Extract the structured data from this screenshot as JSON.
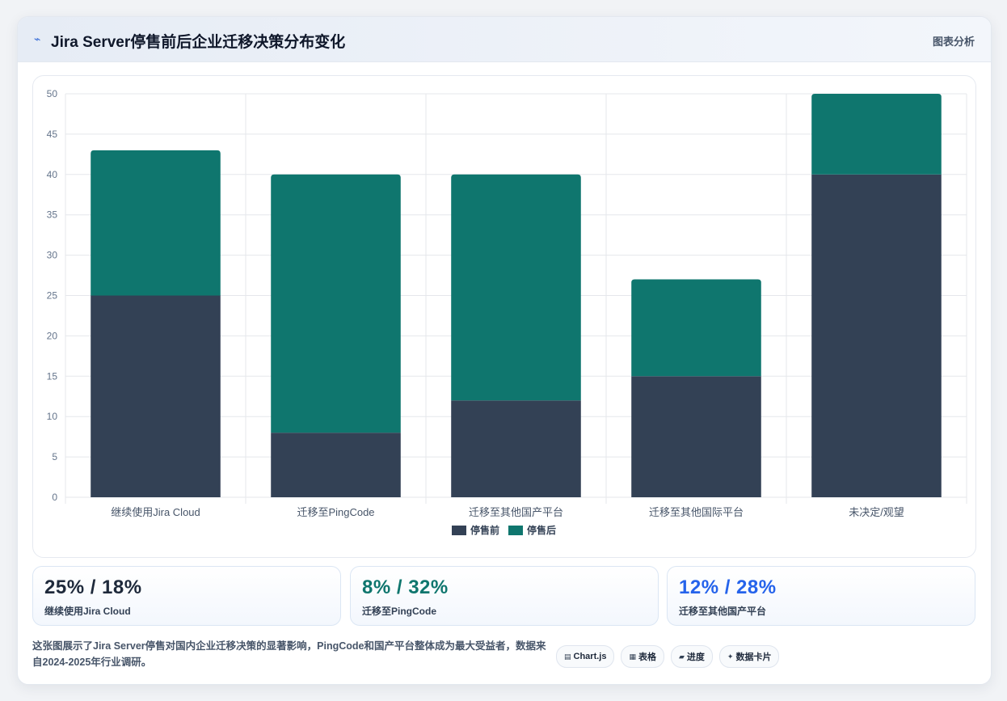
{
  "header": {
    "title": "Jira Server停售前后企业迁移决策分布变化",
    "right_label": "图表分析",
    "icon": "chart-line-icon"
  },
  "colors": {
    "before": "#334155",
    "after": "#0f766e",
    "stat1": "#1e293b",
    "stat2": "#0f766e",
    "stat3": "#2563eb"
  },
  "chart_data": {
    "type": "bar",
    "stacked": true,
    "categories": [
      "继续使用Jira Cloud",
      "迁移至PingCode",
      "迁移至其他国产平台",
      "迁移至其他国际平台",
      "未决定/观望"
    ],
    "series": [
      {
        "name": "停售前",
        "values": [
          25,
          8,
          12,
          15,
          40
        ]
      },
      {
        "name": "停售后",
        "values": [
          18,
          32,
          28,
          12,
          10
        ]
      }
    ],
    "ylim": [
      0,
      50
    ],
    "yticks": [
      0,
      5,
      10,
      15,
      20,
      25,
      30,
      35,
      40,
      45,
      50
    ],
    "grid": true,
    "legend_position": "bottom"
  },
  "stats": [
    {
      "value": "25% / 18%",
      "label": "继续使用Jira Cloud"
    },
    {
      "value": "8% / 32%",
      "label": "迁移至PingCode"
    },
    {
      "value": "12% / 28%",
      "label": "迁移至其他国产平台"
    }
  ],
  "footer": {
    "text": "这张图展示了Jira Server停售对国内企业迁移决策的显著影响，PingCode和国产平台整体成为最大受益者，数据来自2024-2025年行业调研。"
  },
  "chips": [
    {
      "label": "Chart.js",
      "icon": "chart-icon"
    },
    {
      "label": "表格",
      "icon": "table-icon"
    },
    {
      "label": "进度",
      "icon": "progress-icon"
    },
    {
      "label": "数据卡片",
      "icon": "card-icon"
    }
  ]
}
